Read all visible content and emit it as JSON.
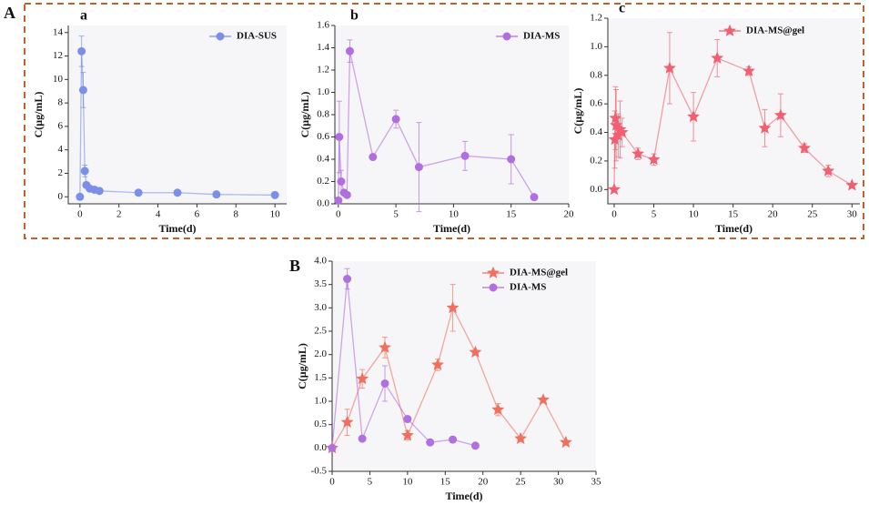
{
  "panel_labels": [
    "A",
    "B"
  ],
  "chart_data": [
    {
      "type": "line",
      "panel_label": "a",
      "x_label": "Time(d)",
      "y_label": "C(μg/mL)",
      "marker": "circle",
      "xlim": [
        -0.6,
        10.6
      ],
      "xticks": [
        0,
        2,
        4,
        6,
        8,
        10
      ],
      "ylim": [
        -0.6,
        14.6
      ],
      "yticks": [
        0,
        2,
        4,
        6,
        8,
        10,
        12,
        14
      ],
      "series": [
        {
          "name": "DIA-SUS",
          "color": "#7b8fe8",
          "x": [
            0,
            0.083,
            0.167,
            0.25,
            0.33,
            0.5,
            0.75,
            1,
            3,
            5,
            7,
            10
          ],
          "values": [
            0,
            12.4,
            9.1,
            2.2,
            1.0,
            0.7,
            0.6,
            0.5,
            0.35,
            0.35,
            0.2,
            0.15
          ],
          "errors": [
            null,
            1.3,
            1.5,
            0.5,
            null,
            null,
            null,
            null,
            null,
            null,
            null,
            null
          ]
        }
      ]
    },
    {
      "type": "line",
      "panel_label": "b",
      "x_label": "Time(d)",
      "y_label": "C(μg/mL)",
      "marker": "circle",
      "xlim": [
        -0.3,
        20
      ],
      "xticks": [
        0,
        5,
        10,
        15,
        20
      ],
      "ylim": [
        0,
        1.6
      ],
      "yticks": [
        {
          "value": 0,
          "label": "0.0"
        },
        0.2,
        0.4,
        0.6,
        0.8,
        {
          "value": 1,
          "label": "1.0"
        },
        1.2,
        1.4,
        1.6
      ],
      "series": [
        {
          "name": "DIA-MS",
          "color": "#b06ee0",
          "x": [
            0,
            0.083,
            0.25,
            0.5,
            0.75,
            1,
            3,
            5,
            7,
            11,
            15,
            17
          ],
          "values": [
            0.03,
            0.6,
            0.2,
            0.1,
            0.08,
            1.37,
            0.42,
            0.76,
            0.33,
            0.43,
            0.4,
            0.06
          ],
          "errors": [
            null,
            0.32,
            0.1,
            null,
            null,
            0.1,
            null,
            0.08,
            0.4,
            0.13,
            0.22,
            null
          ]
        }
      ]
    },
    {
      "type": "line",
      "panel_label": "c",
      "x_label": "Time(d)",
      "y_label": "C(μg/mL)",
      "marker": "star",
      "xlim": [
        -0.8,
        31
      ],
      "xticks": [
        0,
        5,
        10,
        15,
        20,
        25,
        30
      ],
      "ylim": [
        -0.1,
        1.2
      ],
      "yticks": [
        {
          "value": 0,
          "label": "0.0"
        },
        0.2,
        0.4,
        0.6,
        0.8,
        {
          "value": 1,
          "label": "1.0"
        },
        1.2
      ],
      "series": [
        {
          "name": "DIA-MS@gel",
          "color": "#f06070",
          "x": [
            0,
            0.083,
            0.167,
            0.25,
            0.5,
            0.75,
            1,
            3,
            5,
            7,
            10,
            13,
            17,
            19,
            21,
            24,
            27,
            30
          ],
          "values": [
            0,
            0.35,
            0.5,
            0.45,
            0.38,
            0.42,
            0.4,
            0.25,
            0.21,
            0.85,
            0.51,
            0.92,
            0.83,
            0.43,
            0.52,
            0.29,
            0.13,
            0.03
          ],
          "errors": [
            null,
            0.2,
            0.22,
            0.25,
            0.15,
            0.2,
            0.1,
            0.04,
            0.04,
            0.25,
            0.17,
            0.13,
            0.03,
            0.13,
            0.15,
            0.03,
            0.04,
            null
          ]
        }
      ]
    },
    {
      "type": "line",
      "x_label": "Time(d)",
      "y_label": "C(μg/mL)",
      "xlim": [
        0,
        35
      ],
      "xticks": [
        0,
        5,
        10,
        15,
        20,
        25,
        30,
        35
      ],
      "ylim": [
        -0.5,
        4.0
      ],
      "yticks": [
        -0.5,
        {
          "value": 0,
          "label": "0.0"
        },
        0.5,
        {
          "value": 1,
          "label": "1.0"
        },
        1.5,
        {
          "value": 2,
          "label": "2.0"
        },
        2.5,
        {
          "value": 3,
          "label": "3.0"
        },
        3.5,
        {
          "value": 4,
          "label": "4.0"
        }
      ],
      "series": [
        {
          "name": "DIA-MS@gel",
          "color": "#f07060",
          "marker": "star",
          "x": [
            0,
            2,
            4,
            7,
            10,
            14,
            16,
            19,
            22,
            25,
            28,
            31
          ],
          "values": [
            0,
            0.55,
            1.48,
            2.15,
            0.27,
            1.78,
            3.0,
            2.05,
            0.82,
            0.2,
            1.03,
            0.12
          ],
          "errors": [
            null,
            0.28,
            0.2,
            0.22,
            0.1,
            0.12,
            0.5,
            null,
            0.13,
            null,
            null,
            null
          ]
        },
        {
          "name": "DIA-MS",
          "color": "#b070e0",
          "marker": "circle",
          "x": [
            0,
            2,
            4,
            7,
            10,
            13,
            16,
            19
          ],
          "values": [
            0,
            3.62,
            0.2,
            1.38,
            0.62,
            0.12,
            0.18,
            0.05
          ],
          "errors": [
            null,
            0.22,
            null,
            0.38,
            null,
            null,
            null,
            null
          ]
        }
      ]
    }
  ]
}
